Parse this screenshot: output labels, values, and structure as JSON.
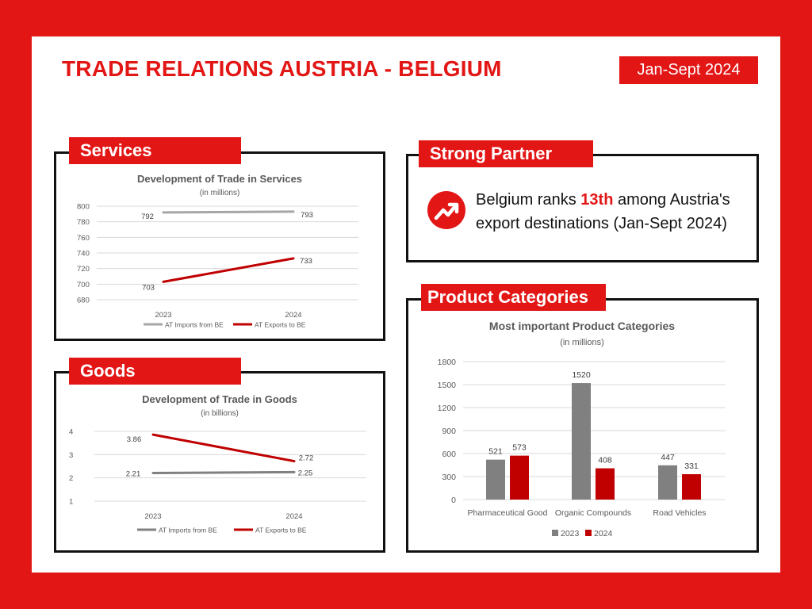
{
  "header": {
    "title": "TRADE RELATIONS AUSTRIA - BELGIUM",
    "period": "Jan-Sept 2024"
  },
  "panels": {
    "services": "Services",
    "goods": "Goods",
    "partner": "Strong Partner",
    "products": "Product Categories"
  },
  "partner": {
    "text_before": "Belgium ranks ",
    "rank": "13th",
    "text_after": " among Austria's export destinations (Jan-Sept 2024)",
    "icon": "trending-up-icon"
  },
  "colors": {
    "accent": "#e31616",
    "gray_series": "#a6a6a6",
    "gray_series_dark": "#808080",
    "red_series": "#c00000"
  },
  "chart_data": [
    {
      "type": "line",
      "title": "Development of Trade in Services",
      "subtitle": "(in millions)",
      "x": [
        "2023",
        "2024"
      ],
      "ylim": [
        680,
        800
      ],
      "yticks": [
        680,
        700,
        720,
        740,
        760,
        780,
        800
      ],
      "grid": true,
      "legend": "bottom",
      "series": [
        {
          "name": "AT Imports from BE",
          "values": [
            792,
            793
          ],
          "color": "#a6a6a6"
        },
        {
          "name": "AT Exports to BE",
          "values": [
            703,
            733
          ],
          "color": "#c00000"
        }
      ]
    },
    {
      "type": "line",
      "title": "Development of Trade in Goods",
      "subtitle": "(in billions)",
      "x": [
        "2023",
        "2024"
      ],
      "ylim": [
        1,
        4
      ],
      "yticks": [
        1,
        2,
        3,
        4
      ],
      "grid": true,
      "legend": "bottom",
      "series": [
        {
          "name": "AT Imports from BE",
          "values": [
            2.21,
            2.25
          ],
          "color": "#808080"
        },
        {
          "name": "AT Exports to BE",
          "values": [
            3.86,
            2.72
          ],
          "color": "#c00000"
        }
      ]
    },
    {
      "type": "bar",
      "title": "Most important Product Categories",
      "subtitle": "(in millions)",
      "categories": [
        "Pharmaceutical Good",
        "Organic Compounds",
        "Road Vehicles"
      ],
      "ylim": [
        0,
        1800
      ],
      "yticks": [
        0,
        300,
        600,
        900,
        1200,
        1500,
        1800
      ],
      "grid": true,
      "legend": "bottom",
      "series": [
        {
          "name": "2023",
          "values": [
            521,
            1520,
            447
          ],
          "color": "#808080"
        },
        {
          "name": "2024",
          "values": [
            573,
            408,
            331
          ],
          "color": "#c00000"
        }
      ]
    }
  ]
}
